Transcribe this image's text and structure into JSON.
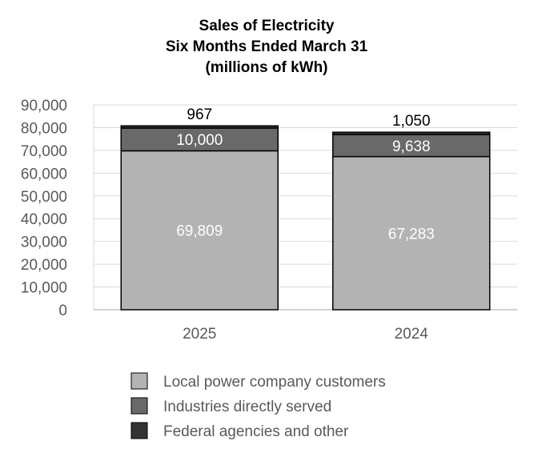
{
  "chart_data": {
    "type": "bar",
    "stacked": true,
    "title": [
      "Sales of Electricity",
      "Six Months Ended March 31",
      "(millions of kWh)"
    ],
    "categories": [
      "2025",
      "2024"
    ],
    "series": [
      {
        "name": "Local power company customers",
        "values": [
          69809,
          67283
        ],
        "labels": [
          "69,809",
          "67,283"
        ],
        "color": "#b3b3b3",
        "label_color": "#ffffff",
        "label_position": "center"
      },
      {
        "name": "Industries directly served",
        "values": [
          10000,
          9638
        ],
        "labels": [
          "10,000",
          "9,638"
        ],
        "color": "#696969",
        "label_color": "#ffffff",
        "label_position": "center"
      },
      {
        "name": "Federal agencies and other",
        "values": [
          967,
          1050
        ],
        "labels": [
          "967",
          "1,050"
        ],
        "color": "#333333",
        "label_color": "#000000",
        "label_position": "above"
      }
    ],
    "ylim": [
      0,
      90000
    ],
    "ytick_values": [
      0,
      10000,
      20000,
      30000,
      40000,
      50000,
      60000,
      70000,
      80000,
      90000
    ],
    "ytick_labels": [
      "0",
      "10,000",
      "20,000",
      "30,000",
      "40,000",
      "50,000",
      "60,000",
      "70,000",
      "80,000",
      "90,000"
    ],
    "xlabel": "",
    "ylabel": "",
    "grid": true,
    "legend_position": "bottom"
  }
}
